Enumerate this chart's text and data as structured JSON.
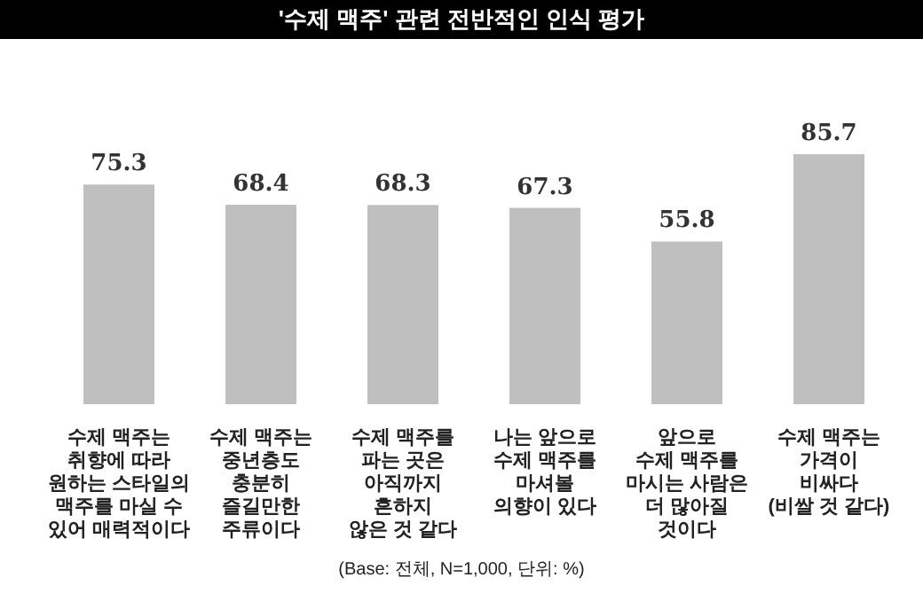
{
  "chart_data": {
    "type": "bar",
    "title": "'수제 맥주' 관련 전반적인 인식 평가",
    "categories": [
      "수제 맥주는\n취향에 따라\n원하는 스타일의\n맥주를 마실 수\n있어 매력적이다",
      "수제 맥주는\n중년층도\n충분히\n즐길만한\n주류이다",
      "수제 맥주를\n파는 곳은\n아직까지\n흔하지\n않은 것 같다",
      "나는 앞으로\n수제 맥주를\n마셔볼\n의향이 있다",
      "앞으로\n수제 맥주를\n마시는 사람은\n더 많아질\n것이다",
      "수제 맥주는\n가격이\n비싸다\n(비쌀 것 같다)"
    ],
    "values": [
      75.3,
      68.4,
      68.3,
      67.3,
      55.8,
      85.7
    ],
    "color": "#bfbfbf",
    "data_labels": true,
    "annotations": [
      "(Base: 전체, N=1,000, 단위: %)"
    ]
  }
}
